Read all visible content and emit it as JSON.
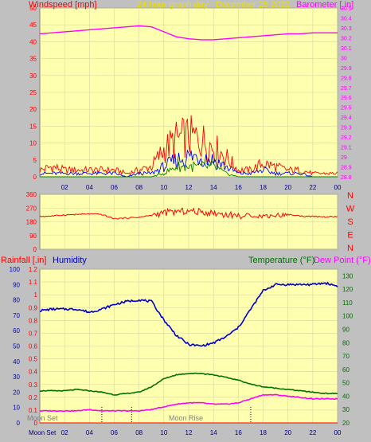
{
  "header": {
    "windspeed_label": "Windspeed [mph]",
    "title": "24 hour graph day - December 25 2022",
    "barometer_label": "Barometer [.in]"
  },
  "colors": {
    "wind_gust": "#ff0000",
    "wind_avg": "#0000ff",
    "wind_low": "#008000",
    "barometer": "#ff00ff",
    "direction": "#ff0000",
    "rainfall": "#ff0000",
    "humidity": "#0000cc",
    "temperature": "#007000",
    "dew_point": "#ff00ff",
    "plot_bg": "#ffffb0",
    "grid": "#d8d8a0",
    "frame_bg": "#c0c0c0"
  },
  "bottom_labels": {
    "rainfall": "Rainfall [.in]",
    "humidity": "Humidity",
    "temperature": "Temperature (°F)",
    "dew_point": "Dew Point (°F)",
    "moon_set": "Moon Set",
    "moon_rise": "Moon Rise",
    "moon_set_axis": "Moon Set"
  },
  "chart_data": [
    {
      "type": "line",
      "panel": "wind",
      "x": [
        0,
        1,
        2,
        3,
        4,
        5,
        6,
        7,
        8,
        9,
        10,
        11,
        12,
        13,
        14,
        15,
        16,
        17,
        18,
        19,
        20,
        21,
        22,
        23,
        24
      ],
      "x_tick_labels": [
        "02",
        "04",
        "06",
        "08",
        "10",
        "12",
        "14",
        "16",
        "18",
        "20",
        "22",
        "00"
      ],
      "ylim": [
        0,
        50
      ],
      "y_ticks": [
        0,
        5,
        10,
        15,
        20,
        25,
        30,
        35,
        40,
        45,
        50
      ],
      "series": [
        {
          "role": "gust",
          "values": [
            2,
            3,
            2,
            2,
            2,
            2,
            2,
            1,
            2,
            3,
            8,
            11,
            12,
            11,
            9,
            6,
            2,
            2,
            4,
            3,
            2,
            2,
            1,
            1,
            1
          ]
        },
        {
          "role": "average",
          "values": [
            1,
            1,
            1,
            1,
            1,
            1,
            1,
            0,
            1,
            1,
            3,
            5,
            6,
            6,
            5,
            3,
            1,
            1,
            2,
            1,
            1,
            1,
            0,
            0,
            0
          ]
        },
        {
          "role": "low",
          "values": [
            0,
            0,
            0,
            0,
            0,
            0,
            0,
            0,
            0,
            0,
            1,
            3,
            3,
            3,
            3,
            1,
            0,
            0,
            0,
            0,
            0,
            0,
            0,
            0,
            0
          ]
        }
      ],
      "barometer": {
        "ylim": [
          28.8,
          30.5
        ],
        "y_ticks": [
          28.8,
          28.9,
          29,
          29.1,
          29.2,
          29.3,
          29.4,
          29.5,
          29.6,
          29.7,
          29.8,
          29.9,
          30,
          30.1,
          30.2,
          30.3,
          30.4,
          30.5
        ],
        "values": [
          30.24,
          30.25,
          30.26,
          30.27,
          30.28,
          30.29,
          30.3,
          30.31,
          30.32,
          30.31,
          30.26,
          30.21,
          30.19,
          30.18,
          30.18,
          30.19,
          30.2,
          30.21,
          30.22,
          30.23,
          30.24,
          30.24,
          30.25,
          30.25,
          30.25
        ]
      }
    },
    {
      "type": "line",
      "panel": "wind_direction",
      "x": [
        0,
        1,
        2,
        3,
        4,
        5,
        6,
        7,
        8,
        9,
        10,
        11,
        12,
        13,
        14,
        15,
        16,
        17,
        18,
        19,
        20,
        21,
        22,
        23,
        24
      ],
      "ylim": [
        0,
        360
      ],
      "y_ticks": [
        0,
        90,
        180,
        270,
        360
      ],
      "compass": [
        "N",
        "W",
        "S",
        "E",
        "N"
      ],
      "values": [
        215,
        218,
        225,
        228,
        232,
        228,
        200,
        205,
        210,
        222,
        240,
        246,
        250,
        244,
        238,
        228,
        220,
        214,
        218,
        222,
        228,
        218,
        215,
        212,
        214
      ]
    },
    {
      "type": "line",
      "panel": "weather",
      "x": [
        0,
        1,
        2,
        3,
        4,
        5,
        6,
        7,
        8,
        9,
        10,
        11,
        12,
        13,
        14,
        15,
        16,
        17,
        18,
        19,
        20,
        21,
        22,
        23,
        24
      ],
      "left_axis": {
        "ylim": [
          0,
          1.2
        ],
        "y_ticks": [
          0,
          0.1,
          0.2,
          0.3,
          0.4,
          0.5,
          0.6,
          0.7,
          0.8,
          0.9,
          1,
          1.1,
          1.2
        ]
      },
      "humidity_axis": {
        "ylim": [
          0,
          100
        ],
        "y_ticks": [
          0,
          10,
          20,
          30,
          40,
          50,
          60,
          70,
          80,
          90,
          100
        ]
      },
      "right_axis": {
        "ylim": [
          20,
          135
        ],
        "y_ticks": [
          20,
          30,
          40,
          50,
          60,
          70,
          80,
          90,
          100,
          110,
          120,
          130
        ]
      },
      "rainfall": [
        0,
        0,
        0,
        0,
        0,
        0,
        0,
        0,
        0,
        0,
        0,
        0,
        0,
        0,
        0,
        0,
        0,
        0,
        0,
        0,
        0,
        0,
        0,
        0,
        0
      ],
      "humidity": [
        73,
        74,
        74,
        74,
        72,
        74,
        77,
        79,
        80,
        79,
        67,
        57,
        51,
        50,
        52,
        56,
        62,
        74,
        86,
        90,
        90,
        90,
        90,
        91,
        89
      ],
      "temperature": [
        44,
        44,
        44,
        45,
        44,
        43,
        41,
        42,
        43,
        47,
        53,
        56,
        57,
        57,
        56,
        54,
        52,
        49,
        47,
        46,
        45,
        44,
        43,
        42,
        42
      ],
      "dew_point": [
        29,
        29,
        29,
        29,
        30,
        29,
        29,
        29,
        29,
        30,
        32,
        34,
        35,
        35,
        34,
        34,
        35,
        38,
        41,
        41,
        40,
        39,
        38,
        38,
        38
      ],
      "moon_markers": [
        5,
        7.4,
        17
      ]
    }
  ]
}
